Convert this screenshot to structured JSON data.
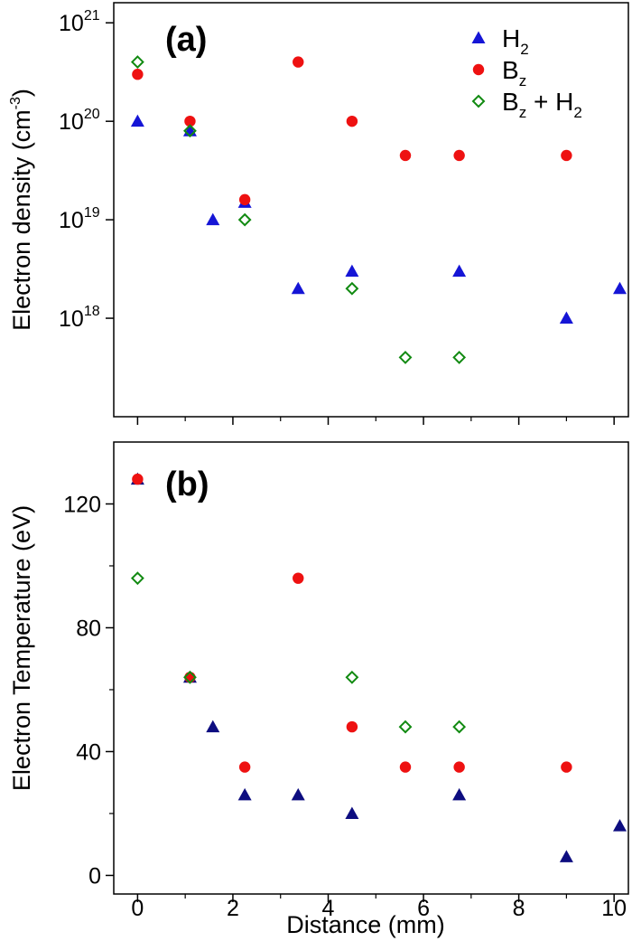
{
  "colors": {
    "H2": "#1515d6",
    "H2_temp": "#0d0d80",
    "Bz": "#ee1111",
    "Bz_H2": "#118a11"
  },
  "chart_data": [
    {
      "type": "scatter",
      "panel_label": "(a)",
      "ylabel": "Electron density (cm-3)",
      "ylabel_main": "Electron density (cm",
      "ylabel_exp": "-3",
      "ylabel_close": ")",
      "yscale": "log",
      "ylim": [
        1e+17,
        1.6e+21
      ],
      "xlim": [
        -0.5,
        10.3
      ],
      "yticks": [
        {
          "value": 1e+18,
          "base": "10",
          "exp": "18"
        },
        {
          "value": 1e+19,
          "base": "10",
          "exp": "19"
        },
        {
          "value": 1e+20,
          "base": "10",
          "exp": "20"
        },
        {
          "value": 1e+21,
          "base": "10",
          "exp": "21"
        }
      ],
      "legend": {
        "placement": "top-right",
        "entries": [
          {
            "series": "H2",
            "base": "H",
            "sub": "2",
            "rest": ""
          },
          {
            "series": "Bz",
            "base": "B",
            "sub": "z",
            "rest": ""
          },
          {
            "series": "Bz + H2",
            "base": "B",
            "sub": "z",
            "rest": " + H",
            "sub2": "2"
          }
        ]
      },
      "series": [
        {
          "name": "H2",
          "marker": "triangle",
          "color_key": "H2",
          "points": [
            [
              0,
              1e+20
            ],
            [
              1.1,
              8e+19
            ],
            [
              1.58,
              1e+19
            ],
            [
              2.25,
              1.5e+19
            ],
            [
              3.37,
              2e+18
            ],
            [
              4.5,
              3e+18
            ],
            [
              6.75,
              3e+18
            ],
            [
              9,
              1e+18
            ],
            [
              10.12,
              2e+18
            ]
          ]
        },
        {
          "name": "Bz",
          "marker": "circle",
          "color_key": "Bz",
          "points": [
            [
              0,
              3e+20
            ],
            [
              1.1,
              1e+20
            ],
            [
              2.25,
              1.6e+19
            ],
            [
              3.37,
              4e+20
            ],
            [
              4.5,
              1e+20
            ],
            [
              5.62,
              4.5e+19
            ],
            [
              6.75,
              4.5e+19
            ],
            [
              9,
              4.5e+19
            ]
          ]
        },
        {
          "name": "Bz + H2",
          "marker": "diamond",
          "color_key": "Bz_H2",
          "points": [
            [
              0,
              4e+20
            ],
            [
              1.1,
              8e+19
            ],
            [
              2.25,
              1e+19
            ],
            [
              4.5,
              2e+18
            ],
            [
              5.62,
              4e+17
            ],
            [
              6.75,
              4e+17
            ]
          ]
        }
      ]
    },
    {
      "type": "scatter",
      "panel_label": "(b)",
      "ylabel": "Electron Temperature (eV)",
      "xlabel": "Distance (mm)",
      "yscale": "linear",
      "ylim": [
        -6,
        140
      ],
      "xlim": [
        -0.5,
        10.3
      ],
      "yticks": [
        0,
        40,
        80,
        120
      ],
      "xticks": [
        0,
        2,
        4,
        6,
        8,
        10
      ],
      "series": [
        {
          "name": "H2",
          "marker": "triangle",
          "color_key": "H2_temp",
          "points": [
            [
              0,
              128
            ],
            [
              1.1,
              64
            ],
            [
              1.58,
              48
            ],
            [
              2.25,
              26
            ],
            [
              3.37,
              26
            ],
            [
              4.5,
              20
            ],
            [
              6.75,
              26
            ],
            [
              9,
              6
            ],
            [
              10.12,
              16
            ]
          ]
        },
        {
          "name": "Bz",
          "marker": "circle",
          "color_key": "Bz",
          "points": [
            [
              0,
              128
            ],
            [
              1.1,
              64
            ],
            [
              2.25,
              35
            ],
            [
              3.37,
              96
            ],
            [
              4.5,
              48
            ],
            [
              5.62,
              35
            ],
            [
              6.75,
              35
            ],
            [
              9,
              35
            ]
          ]
        },
        {
          "name": "Bz + H2",
          "marker": "diamond",
          "color_key": "Bz_H2",
          "points": [
            [
              0,
              96
            ],
            [
              1.1,
              64
            ],
            [
              4.5,
              64
            ],
            [
              5.62,
              48
            ],
            [
              6.75,
              48
            ]
          ]
        }
      ]
    }
  ]
}
